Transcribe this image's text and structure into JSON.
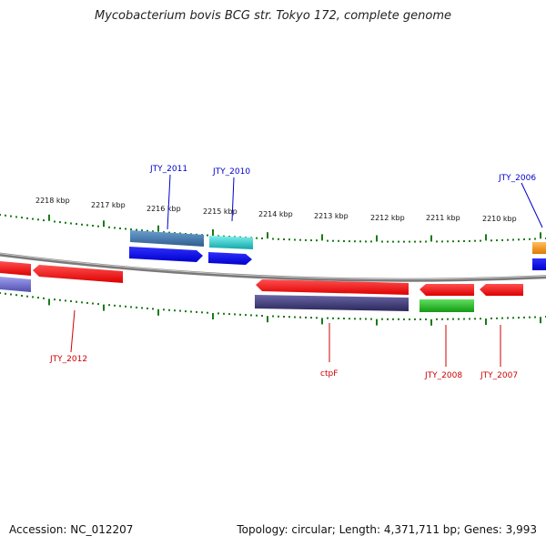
{
  "title": "Mycobacterium bovis BCG str. Tokyo 172, complete genome",
  "footer": {
    "accession": "Accession: NC_012207",
    "stats": "Topology: circular; Length: 4,371,711 bp; Genes: 3,993"
  },
  "colors": {
    "axis": "#888888",
    "tick": "#1a7a1a",
    "label_forward": "#0000cc",
    "label_reverse": "#cc0000"
  },
  "scale_labels": [
    {
      "name": "tick-2218",
      "text": "2218 kbp",
      "kbp": 2218
    },
    {
      "name": "tick-2217",
      "text": "2217 kbp",
      "kbp": 2217
    },
    {
      "name": "tick-2216",
      "text": "2216 kbp",
      "kbp": 2216
    },
    {
      "name": "tick-2215",
      "text": "2215 kbp",
      "kbp": 2215
    },
    {
      "name": "tick-2214",
      "text": "2214 kbp",
      "kbp": 2214
    },
    {
      "name": "tick-2213",
      "text": "2213 kbp",
      "kbp": 2213
    },
    {
      "name": "tick-2212",
      "text": "2212 kbp",
      "kbp": 2212
    },
    {
      "name": "tick-2211",
      "text": "2211 kbp",
      "kbp": 2211
    },
    {
      "name": "tick-2210",
      "text": "2210 kbp",
      "kbp": 2210
    }
  ],
  "gene_labels": {
    "jty_2011": "JTY_2011",
    "jty_2010": "JTY_2010",
    "jty_2006": "JTY_2006",
    "jty_2012": "JTY_2012",
    "ctpf": "ctpF",
    "jty_2008": "JTY_2008",
    "jty_2007": "JTY_2007"
  },
  "feature_colors": {
    "forward_cds": "#0000ee",
    "reverse_cds": "#ee0000",
    "gene_steelblue": "#4a7fb5",
    "gene_cyan": "#20c8c8",
    "gene_purple": "#3d3a7a",
    "gene_lavender": "#7070d0",
    "gene_green": "#22c022",
    "gene_orange": "#ff9900"
  }
}
